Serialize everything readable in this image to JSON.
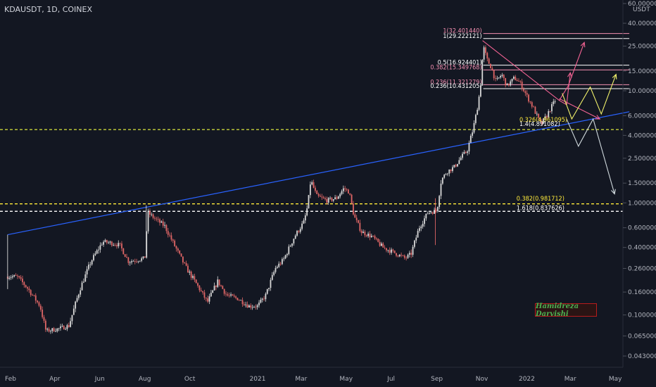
{
  "header": {
    "symbol": "KDAUSDT, 1D, COINEX"
  },
  "watermark": "Hamidreza Darvishi",
  "chart_data": {
    "type": "candlestick",
    "price_scale": "log",
    "y_unit": "USDT",
    "y_ticks": [
      "60.000000",
      "40.000000",
      "25.000000",
      "15.000000",
      "10.000000",
      "6.000000",
      "4.000000",
      "2.500000",
      "1.500000",
      "1.000000",
      "0.600000",
      "0.400000",
      "0.260000",
      "0.160000",
      "0.100000",
      "0.065000",
      "0.043000"
    ],
    "x_ticks": [
      "Feb",
      "Apr",
      "Jun",
      "Aug",
      "Oct",
      "2021",
      "Mar",
      "May",
      "Jul",
      "Sep",
      "Nov",
      "2022",
      "Mar",
      "May"
    ],
    "price_path": [
      [
        "2020-01-28",
        0.22
      ],
      [
        "2020-02-10",
        0.22
      ],
      [
        "2020-02-25",
        0.17
      ],
      [
        "2020-03-12",
        0.12
      ],
      [
        "2020-03-20",
        0.072
      ],
      [
        "2020-04-05",
        0.075
      ],
      [
        "2020-04-20",
        0.08
      ],
      [
        "2020-05-05",
        0.17
      ],
      [
        "2020-05-20",
        0.3
      ],
      [
        "2020-06-05",
        0.45
      ],
      [
        "2020-06-15",
        0.44
      ],
      [
        "2020-06-28",
        0.42
      ],
      [
        "2020-07-10",
        0.3
      ],
      [
        "2020-07-22",
        0.31
      ],
      [
        "2020-08-01",
        0.32
      ],
      [
        "2020-08-05",
        0.82
      ],
      [
        "2020-08-15",
        0.72
      ],
      [
        "2020-08-28",
        0.62
      ],
      [
        "2020-09-10",
        0.42
      ],
      [
        "2020-09-25",
        0.27
      ],
      [
        "2020-10-12",
        0.18
      ],
      [
        "2020-10-25",
        0.13
      ],
      [
        "2020-11-08",
        0.2
      ],
      [
        "2020-11-20",
        0.15
      ],
      [
        "2020-12-05",
        0.14
      ],
      [
        "2020-12-20",
        0.12
      ],
      [
        "2021-01-01",
        0.12
      ],
      [
        "2021-01-12",
        0.15
      ],
      [
        "2021-01-25",
        0.26
      ],
      [
        "2021-02-05",
        0.31
      ],
      [
        "2021-02-20",
        0.5
      ],
      [
        "2021-03-05",
        0.68
      ],
      [
        "2021-03-10",
        0.95
      ],
      [
        "2021-03-14",
        1.6
      ],
      [
        "2021-03-22",
        1.15
      ],
      [
        "2021-04-05",
        1.05
      ],
      [
        "2021-04-18",
        1.1
      ],
      [
        "2021-04-28",
        1.35
      ],
      [
        "2021-05-05",
        1.25
      ],
      [
        "2021-05-12",
        0.75
      ],
      [
        "2021-05-22",
        0.55
      ],
      [
        "2021-06-05",
        0.5
      ],
      [
        "2021-06-20",
        0.4
      ],
      [
        "2021-07-05",
        0.36
      ],
      [
        "2021-07-20",
        0.32
      ],
      [
        "2021-07-28",
        0.35
      ],
      [
        "2021-08-08",
        0.6
      ],
      [
        "2021-08-20",
        0.82
      ],
      [
        "2021-09-01",
        0.85
      ],
      [
        "2021-09-07",
        1.6
      ],
      [
        "2021-09-15",
        1.9
      ],
      [
        "2021-09-25",
        2.1
      ],
      [
        "2021-10-05",
        2.6
      ],
      [
        "2021-10-12",
        2.9
      ],
      [
        "2021-10-20",
        4.5
      ],
      [
        "2021-10-25",
        6.5
      ],
      [
        "2021-10-30",
        10.5
      ],
      [
        "2021-11-03",
        25
      ],
      [
        "2021-11-08",
        19
      ],
      [
        "2021-11-14",
        16
      ],
      [
        "2021-11-20",
        12
      ],
      [
        "2021-11-28",
        14
      ],
      [
        "2021-12-05",
        11
      ],
      [
        "2021-12-15",
        13
      ],
      [
        "2021-12-22",
        12
      ],
      [
        "2022-01-01",
        9
      ],
      [
        "2022-01-10",
        7
      ],
      [
        "2022-01-20",
        5
      ],
      [
        "2022-01-28",
        6
      ],
      [
        "2022-02-05",
        7.5
      ],
      [
        "2022-02-10",
        8.5
      ]
    ],
    "trendline": {
      "from": [
        "2020-01-28",
        0.52
      ],
      "to": [
        "2022-05-20",
        6.5
      ],
      "color": "#2962ff"
    },
    "horizontal_levels": [
      {
        "price": 4.5,
        "color": "#c6d13a",
        "style": "dashed"
      },
      {
        "price": 0.98,
        "color": "#ffeb3b",
        "style": "dashed"
      },
      {
        "price": 0.84,
        "color": "#ffffff",
        "style": "dashed"
      }
    ],
    "fib_levels": [
      {
        "label": "1(32.401440)",
        "price": 32.40144,
        "color": "#f48fb1",
        "from": "2021-11-03",
        "to": "2022-05-20"
      },
      {
        "label": "1(29.222121)",
        "price": 29.222121,
        "color": "#ffffff",
        "from": "2021-11-03",
        "to": "2022-05-20"
      },
      {
        "label": "0.5(16.924401)",
        "price": 16.924401,
        "color": "#ffffff",
        "from": "2021-11-03",
        "to": "2022-05-20"
      },
      {
        "label": "0.382(15.349768)",
        "price": 15.349768,
        "color": "#f48fb1",
        "from": "2021-11-03",
        "to": "2022-05-20"
      },
      {
        "label": "0.236(11.321279)",
        "price": 11.321279,
        "color": "#f48fb1",
        "from": "2021-11-03",
        "to": "2022-05-20"
      },
      {
        "label": "0.236(10.431205)",
        "price": 10.431205,
        "color": "#ffffff",
        "from": "2021-11-03",
        "to": "2022-05-20"
      }
    ],
    "fib_labels_low": [
      {
        "label": "0.326(4.961095)",
        "price": 5.3,
        "color": "#ffeb3b"
      },
      {
        "label": "1.4(4.891082)",
        "price": 4.85,
        "color": "#ffffff"
      },
      {
        "label": "0.382(0.981712)",
        "price": 1.05,
        "color": "#ffeb3b"
      },
      {
        "label": "1.618(0.837626)",
        "price": 0.86,
        "color": "#ffffff"
      }
    ],
    "projection_paths": [
      {
        "color": "#f06292",
        "points": [
          [
            "2021-11-02",
            28
          ],
          [
            "2022-02-14",
            8.2
          ],
          [
            "2022-02-24",
            7.5
          ],
          [
            "2022-03-01",
            14.5
          ]
        ]
      },
      {
        "color": "#f06292",
        "points": [
          [
            "2022-02-14",
            8.2
          ],
          [
            "2022-02-26",
            11
          ],
          [
            "2022-03-20",
            27
          ]
        ]
      },
      {
        "color": "#f06292",
        "points": [
          [
            "2022-02-14",
            8.5
          ],
          [
            "2022-04-10",
            5.6
          ]
        ]
      },
      {
        "color": "#f2f26b",
        "points": [
          [
            "2022-02-18",
            9.5
          ],
          [
            "2022-03-03",
            5.6
          ],
          [
            "2022-03-28",
            10.8
          ],
          [
            "2022-04-12",
            6.2
          ],
          [
            "2022-05-02",
            14
          ]
        ]
      },
      {
        "color": "#cfd8dc",
        "points": [
          [
            "2022-02-24",
            5.6
          ],
          [
            "2022-03-12",
            3.2
          ],
          [
            "2022-04-01",
            5.6
          ],
          [
            "2022-04-30",
            1.2
          ]
        ]
      }
    ]
  }
}
